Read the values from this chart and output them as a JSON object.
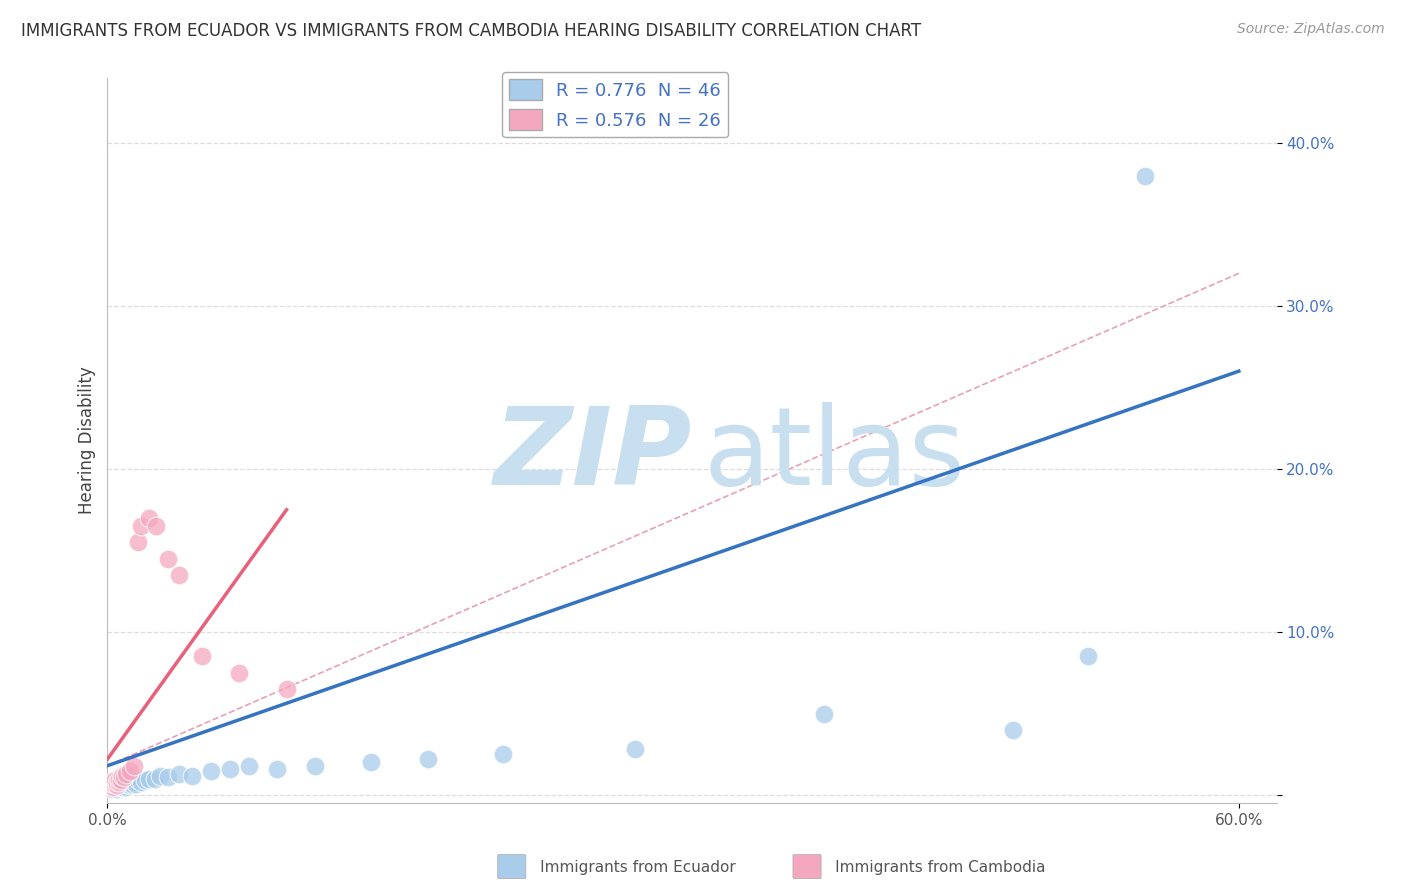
{
  "title": "IMMIGRANTS FROM ECUADOR VS IMMIGRANTS FROM CAMBODIA HEARING DISABILITY CORRELATION CHART",
  "source": "Source: ZipAtlas.com",
  "ylabel": "Hearing Disability",
  "xlim": [
    0.0,
    0.62
  ],
  "ylim": [
    -0.005,
    0.44
  ],
  "ecuador_R": 0.776,
  "ecuador_N": 46,
  "cambodia_R": 0.576,
  "cambodia_N": 26,
  "ecuador_color": "#A8CCEA",
  "cambodia_color": "#F4A8C0",
  "ecuador_line_color": "#3673C0",
  "cambodia_line_color": "#E8607A",
  "ref_line_color": "#E8A0B4",
  "watermark_zip_color": "#C8DFF0",
  "watermark_atlas_color": "#C8DFF0",
  "background_color": "#FFFFFF",
  "grid_color": "#DDDDDD",
  "title_fontsize": 12,
  "source_fontsize": 10,
  "tick_fontsize": 11,
  "ylabel_fontsize": 12,
  "ecuador_x": [
    0.001,
    0.002,
    0.003,
    0.003,
    0.004,
    0.004,
    0.005,
    0.005,
    0.005,
    0.006,
    0.006,
    0.007,
    0.007,
    0.008,
    0.008,
    0.009,
    0.009,
    0.01,
    0.01,
    0.011,
    0.012,
    0.013,
    0.014,
    0.015,
    0.016,
    0.018,
    0.02,
    0.022,
    0.025,
    0.028,
    0.032,
    0.038,
    0.045,
    0.055,
    0.065,
    0.075,
    0.09,
    0.11,
    0.14,
    0.17,
    0.21,
    0.28,
    0.38,
    0.48,
    0.52,
    0.55
  ],
  "ecuador_y": [
    0.005,
    0.004,
    0.006,
    0.007,
    0.005,
    0.008,
    0.004,
    0.006,
    0.007,
    0.005,
    0.007,
    0.006,
    0.008,
    0.005,
    0.007,
    0.006,
    0.008,
    0.005,
    0.007,
    0.008,
    0.006,
    0.007,
    0.008,
    0.007,
    0.009,
    0.008,
    0.009,
    0.01,
    0.01,
    0.012,
    0.011,
    0.013,
    0.012,
    0.015,
    0.016,
    0.018,
    0.016,
    0.018,
    0.02,
    0.022,
    0.025,
    0.028,
    0.05,
    0.04,
    0.085,
    0.38
  ],
  "cambodia_x": [
    0.001,
    0.002,
    0.002,
    0.003,
    0.003,
    0.004,
    0.004,
    0.005,
    0.005,
    0.006,
    0.006,
    0.007,
    0.008,
    0.009,
    0.01,
    0.012,
    0.014,
    0.016,
    0.018,
    0.022,
    0.026,
    0.032,
    0.038,
    0.05,
    0.07,
    0.095
  ],
  "cambodia_y": [
    0.005,
    0.006,
    0.008,
    0.005,
    0.007,
    0.007,
    0.009,
    0.006,
    0.008,
    0.008,
    0.01,
    0.009,
    0.012,
    0.011,
    0.013,
    0.015,
    0.018,
    0.155,
    0.165,
    0.17,
    0.165,
    0.145,
    0.135,
    0.085,
    0.075,
    0.065
  ],
  "ecu_line_x0": 0.0,
  "ecu_line_y0": 0.018,
  "ecu_line_x1": 0.6,
  "ecu_line_y1": 0.26,
  "cam_line_x0": 0.0,
  "cam_line_y0": 0.022,
  "cam_line_x1": 0.095,
  "cam_line_y1": 0.175,
  "ref_line_x0": 0.0,
  "ref_line_y0": 0.018,
  "ref_line_x1": 0.6,
  "ref_line_y1": 0.32
}
